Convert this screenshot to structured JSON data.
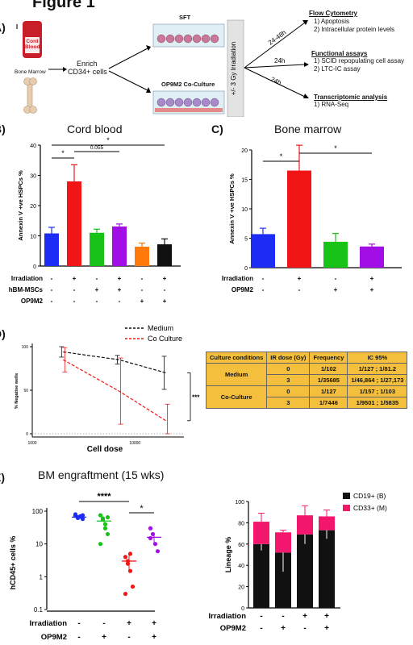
{
  "figure_title": "Figure 1",
  "panel_labels": {
    "a": "A)",
    "b": "B)",
    "c": "C)",
    "d": "D)",
    "e": "E)"
  },
  "panel_a": {
    "cord_blood": "Cord Blood",
    "bone_marrow": "Bone Marrow",
    "enrich": "Enrich",
    "cd34": "CD34+ cells",
    "sft": "SFT",
    "coculture": "OP9M2 Co-Culture",
    "irradiation": "+/- 3 Gy Irradiation",
    "t1": "24-48h",
    "t2": "24h",
    "t3": "24h",
    "flow_title": "Flow Cytometry",
    "flow_1": "1) Apoptosis",
    "flow_2": "2) Intracellular protein levels",
    "func_title": "Functional assays",
    "func_1": "1) SCID repopulating cell assay",
    "func_2": "2) LTC-IC assay",
    "tx_title": "Transcriptomic analysis",
    "tx_1": "1) RNA-Seq"
  },
  "panel_b": {
    "title": "Cord blood",
    "ylabel": "Annexin V +ve HSPCs %",
    "yticks": [
      "0",
      "10",
      "20",
      "30",
      "40"
    ],
    "sig": [
      "*",
      "0.055",
      "*"
    ],
    "row_labels": [
      "Irradiation",
      "hBM-MSCs",
      "OP9M2"
    ],
    "rows": [
      [
        "-",
        "+",
        "-",
        "+",
        "-",
        "+"
      ],
      [
        "-",
        "-",
        "+",
        "+",
        "-",
        "-"
      ],
      [
        "-",
        "-",
        "-",
        "-",
        "+",
        "+"
      ]
    ]
  },
  "panel_c": {
    "title": "Bone marrow",
    "ylabel": "Annexin V +ve HSPCs %",
    "yticks": [
      "0",
      "5",
      "10",
      "15",
      "20"
    ],
    "sig": [
      "*",
      "*"
    ],
    "row_labels": [
      "Irradiation",
      "OP9M2"
    ],
    "rows": [
      [
        "-",
        "+",
        "-",
        "+"
      ],
      [
        "-",
        "-",
        "+",
        "+"
      ]
    ]
  },
  "panel_d": {
    "ylabel": "% Negative wells",
    "xlabel": "Cell dose",
    "yticks": [
      "0",
      "50",
      "100"
    ],
    "xticks": [
      "1000",
      "10000"
    ],
    "legend": [
      "Medium",
      "Co Culture"
    ],
    "sig": "***",
    "table": {
      "headers": [
        "Culture conditions",
        "IR dose (Gy)",
        "Frequency",
        "IC 95%"
      ],
      "groups": [
        {
          "condition": "Medium",
          "rows": [
            [
              "0",
              "1/102",
              "1/127 ; 1/81.2"
            ],
            [
              "3",
              "1/35685",
              "1/46,864 ; 1/27,173"
            ]
          ]
        },
        {
          "condition": "Co-Culture",
          "rows": [
            [
              "0",
              "1/127",
              "1/157 ; 1/103"
            ],
            [
              "3",
              "1/7446",
              "1/9501 ; 1/5835"
            ]
          ]
        }
      ]
    }
  },
  "panel_e": {
    "title": "BM engraftment (15 wks)",
    "ylabel_left": "hCD45+ cells %",
    "ylabel_right": "Lineage %",
    "yticks_left": [
      "0.1",
      "1",
      "10",
      "100"
    ],
    "yticks_right": [
      "0",
      "20",
      "40",
      "60",
      "80",
      "100"
    ],
    "sig": [
      "****",
      "*"
    ],
    "legend": [
      "CD19+ (B)",
      "CD33+ (M)"
    ],
    "row_labels": [
      "Irradiation",
      "OP9M2"
    ],
    "rows": [
      [
        "-",
        "-",
        "+",
        "+"
      ],
      [
        "-",
        "+",
        "-",
        "+"
      ]
    ]
  },
  "colors": {
    "blue": "#1d2cf5",
    "red": "#f21515",
    "green": "#16c316",
    "purple": "#a20fe6",
    "orange": "#ff7a0a",
    "black": "#111111",
    "pink": "#f2176d",
    "table": "#f4bf3c"
  },
  "chart_data": [
    {
      "id": "B",
      "type": "bar",
      "title": "Cord blood",
      "ylabel": "Annexin V +ve HSPCs %",
      "ylim": [
        0,
        40
      ],
      "values": [
        10.8,
        28,
        11,
        13.1,
        6.4,
        7.2
      ],
      "errors": [
        2,
        5.5,
        1.2,
        0.8,
        1.2,
        1.8
      ],
      "colors": [
        "#1d2cf5",
        "#f21515",
        "#16c316",
        "#a20fe6",
        "#ff7a0a",
        "#111111"
      ]
    },
    {
      "id": "C",
      "type": "bar",
      "title": "Bone marrow",
      "ylabel": "Annexin V +ve HSPCs %",
      "ylim": [
        0,
        20
      ],
      "values": [
        5.7,
        16.5,
        4.4,
        3.6
      ],
      "errors": [
        1,
        4.3,
        1.4,
        0.4
      ],
      "colors": [
        "#1d2cf5",
        "#f21515",
        "#16c316",
        "#a20fe6"
      ]
    },
    {
      "id": "D",
      "type": "line",
      "xlabel": "Cell dose",
      "ylabel": "% Negative wells",
      "ylim": [
        0,
        100
      ],
      "xlim": [
        1000,
        30000
      ],
      "log_x": true,
      "series": [
        {
          "name": "Medium",
          "color": "#111111",
          "x": [
            2000,
            7000,
            20000
          ],
          "y": [
            94,
            85,
            70
          ],
          "err": [
            6,
            5,
            19
          ]
        },
        {
          "name": "Co Culture",
          "color": "#f21515",
          "x": [
            2000,
            7000,
            20000
          ],
          "y": [
            85,
            49,
            15
          ],
          "err": [
            14,
            38,
            19
          ]
        }
      ]
    },
    {
      "id": "E-left",
      "type": "scatter",
      "ylabel": "hCD45+ cells %",
      "log_y": true,
      "ylim": [
        0.1,
        100
      ],
      "groups": [
        {
          "color": "#1d2cf5",
          "mean": 66,
          "sem": 5,
          "points": [
            80,
            65,
            70,
            58,
            72,
            62,
            68,
            75
          ]
        },
        {
          "color": "#16c316",
          "mean": 50,
          "sem": 10,
          "points": [
            75,
            60,
            40,
            20,
            10,
            55,
            30,
            65
          ]
        },
        {
          "color": "#f21515",
          "mean": 3,
          "sem": 1.5,
          "points": [
            4,
            2.5,
            1.5,
            0.5,
            0.3,
            3,
            5
          ]
        },
        {
          "color": "#a20fe6",
          "mean": 16,
          "sem": 5,
          "points": [
            30,
            20,
            10,
            6,
            15
          ]
        }
      ]
    },
    {
      "id": "E-right",
      "type": "bar",
      "ylabel": "Lineage %",
      "ylim": [
        0,
        100
      ],
      "stacked": true,
      "series": [
        {
          "name": "CD19+ (B)",
          "color": "#111111",
          "values": [
            60,
            52,
            69,
            73
          ],
          "errors": [
            6,
            18,
            9,
            8
          ]
        },
        {
          "name": "CD33+ (M)",
          "color": "#f2176d",
          "values": [
            21,
            19,
            18,
            13
          ],
          "errors": [
            8,
            2,
            9,
            6
          ]
        }
      ]
    }
  ]
}
